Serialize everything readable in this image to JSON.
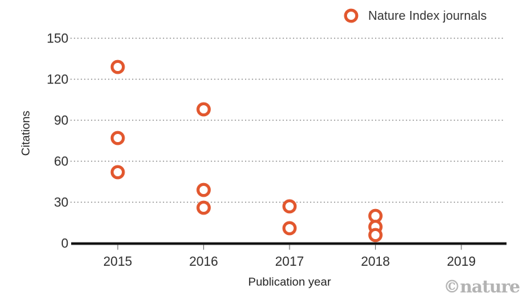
{
  "legend": {
    "label": "Nature Index journals",
    "marker": "open-circle-icon"
  },
  "watermark": "©nature",
  "colors": {
    "accent": "#e2572e",
    "marker_fill": "#ffffff",
    "grid": "#8f8f8f",
    "axis": "#111111",
    "tick_label": "#2e2e2e",
    "tick_mark": "#777777",
    "axis_title": "#222222",
    "watermark": "#b3b3b3"
  },
  "chart_data": {
    "type": "scatter",
    "title": "",
    "xlabel": "Publication year",
    "ylabel": "Citations",
    "x_ticks": [
      2015,
      2016,
      2017,
      2018,
      2019
    ],
    "y_ticks": [
      0,
      30,
      60,
      90,
      120,
      150
    ],
    "xlim": [
      2014.5,
      2019.5
    ],
    "ylim": [
      0,
      150
    ],
    "grid": "horizontal-dotted",
    "legend_position": "top-right",
    "series": [
      {
        "name": "Nature Index journals",
        "marker": "open-circle",
        "points": [
          {
            "x": 2015,
            "y": 129
          },
          {
            "x": 2015,
            "y": 77
          },
          {
            "x": 2015,
            "y": 52
          },
          {
            "x": 2016,
            "y": 98
          },
          {
            "x": 2016,
            "y": 39
          },
          {
            "x": 2016,
            "y": 26
          },
          {
            "x": 2017,
            "y": 27
          },
          {
            "x": 2017,
            "y": 11
          },
          {
            "x": 2018,
            "y": 20
          },
          {
            "x": 2018,
            "y": 12
          },
          {
            "x": 2018,
            "y": 6
          }
        ]
      }
    ]
  }
}
